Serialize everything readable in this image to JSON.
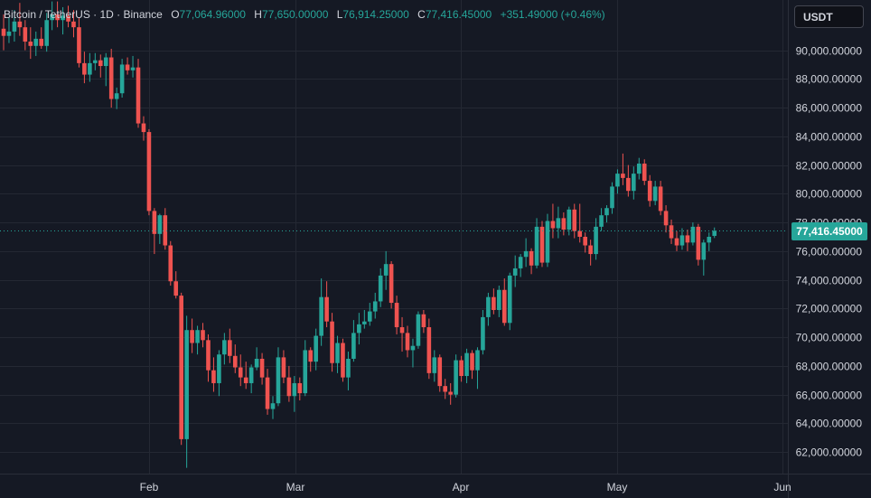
{
  "header": {
    "symbol": "Bitcoin / TetherUS · 1D · Binance",
    "open_label": "O",
    "open_value": "77,064.96000",
    "high_label": "H",
    "high_value": "77,650.00000",
    "low_label": "L",
    "low_value": "76,914.25000",
    "close_label": "C",
    "close_value": "77,416.45000",
    "change": "+351.49000 (+0.46%)"
  },
  "currency_button": "USDT",
  "last_price_label": "77,416.45000",
  "colors": {
    "background": "#151924",
    "grid": "#242833",
    "up": "#26a69a",
    "down": "#ef5350",
    "axis_text": "#d1d4dc"
  },
  "chart_data": {
    "type": "candlestick",
    "x_ticks": [
      "Feb",
      "Mar",
      "Apr",
      "May",
      "Jun"
    ],
    "y_ticks": [
      "62,000.00000",
      "64,000.00000",
      "66,000.00000",
      "68,000.00000",
      "70,000.00000",
      "72,000.00000",
      "74,000.00000",
      "76,000.00000",
      "78,000.00000",
      "80,000.00000",
      "82,000.00000",
      "84,000.00000",
      "86,000.00000",
      "88,000.00000",
      "90,000.00000"
    ],
    "y_range": [
      60500,
      93500
    ],
    "last_price": 77416.45,
    "candles": [
      [
        91500,
        92500,
        90000,
        91000
      ],
      [
        91000,
        92300,
        90500,
        91300
      ],
      [
        91300,
        92800,
        90600,
        92000
      ],
      [
        92000,
        93300,
        91000,
        91600
      ],
      [
        91600,
        92100,
        90000,
        90600
      ],
      [
        90600,
        91600,
        89400,
        90300
      ],
      [
        90300,
        91300,
        89600,
        90800
      ],
      [
        90800,
        91600,
        90100,
        90300
      ],
      [
        90300,
        92600,
        89900,
        92100
      ],
      [
        92100,
        93400,
        91400,
        92500
      ],
      [
        92500,
        93400,
        91600,
        92100
      ],
      [
        92100,
        93000,
        91100,
        92400
      ],
      [
        92400,
        93100,
        91600,
        92000
      ],
      [
        92000,
        92800,
        90900,
        91600
      ],
      [
        91600,
        92300,
        88800,
        89100
      ],
      [
        89100,
        89900,
        87700,
        88300
      ],
      [
        88300,
        89800,
        87800,
        89100
      ],
      [
        89100,
        89800,
        88600,
        89300
      ],
      [
        89300,
        89700,
        88100,
        88900
      ],
      [
        88900,
        89800,
        87500,
        89500
      ],
      [
        89500,
        90100,
        86000,
        86600
      ],
      [
        86600,
        87400,
        85900,
        87000
      ],
      [
        87000,
        89400,
        86700,
        89000
      ],
      [
        89000,
        89500,
        88300,
        88600
      ],
      [
        88600,
        89600,
        88100,
        88800
      ],
      [
        88800,
        89400,
        84600,
        84900
      ],
      [
        84900,
        85400,
        83700,
        84300
      ],
      [
        84300,
        84500,
        78500,
        78800
      ],
      [
        78800,
        79000,
        75800,
        77200
      ],
      [
        77200,
        78600,
        76500,
        78500
      ],
      [
        78500,
        79000,
        76100,
        76400
      ],
      [
        76400,
        76700,
        73600,
        73900
      ],
      [
        73900,
        74600,
        72700,
        72900
      ],
      [
        72900,
        73100,
        62500,
        62900
      ],
      [
        62900,
        71500,
        60900,
        70500
      ],
      [
        70500,
        71300,
        68900,
        69600
      ],
      [
        69600,
        70800,
        68800,
        70500
      ],
      [
        70500,
        71000,
        69300,
        69800
      ],
      [
        69800,
        70200,
        66900,
        67700
      ],
      [
        67700,
        68600,
        66200,
        66800
      ],
      [
        66800,
        69100,
        65900,
        68800
      ],
      [
        68800,
        70300,
        68100,
        69800
      ],
      [
        69800,
        70600,
        68200,
        68700
      ],
      [
        68700,
        69500,
        67500,
        67900
      ],
      [
        67900,
        68800,
        66600,
        67200
      ],
      [
        67200,
        68300,
        66400,
        66800
      ],
      [
        66800,
        68100,
        66100,
        67900
      ],
      [
        67900,
        69300,
        67700,
        68500
      ],
      [
        68500,
        68900,
        66700,
        67200
      ],
      [
        67200,
        67800,
        64600,
        65000
      ],
      [
        65000,
        65900,
        64300,
        65400
      ],
      [
        65400,
        69300,
        65200,
        68600
      ],
      [
        68600,
        69100,
        66800,
        67200
      ],
      [
        67200,
        68000,
        65500,
        65900
      ],
      [
        65900,
        67300,
        64800,
        66800
      ],
      [
        66800,
        67200,
        65600,
        66100
      ],
      [
        66100,
        69800,
        65900,
        69100
      ],
      [
        69100,
        69300,
        67600,
        68300
      ],
      [
        68300,
        70600,
        67700,
        70100
      ],
      [
        70100,
        74100,
        69400,
        72800
      ],
      [
        72800,
        73900,
        70700,
        71100
      ],
      [
        71100,
        71700,
        67600,
        68200
      ],
      [
        68200,
        70100,
        67500,
        69600
      ],
      [
        69600,
        69900,
        66900,
        67200
      ],
      [
        67200,
        69000,
        66300,
        68500
      ],
      [
        68500,
        71200,
        68300,
        70300
      ],
      [
        70300,
        71700,
        69500,
        70900
      ],
      [
        70900,
        71900,
        70600,
        71100
      ],
      [
        71100,
        72400,
        70800,
        71800
      ],
      [
        71800,
        73100,
        71300,
        72500
      ],
      [
        72500,
        74800,
        72100,
        74300
      ],
      [
        74300,
        76000,
        73300,
        75100
      ],
      [
        75100,
        75300,
        72000,
        72400
      ],
      [
        72400,
        72900,
        70200,
        70700
      ],
      [
        70700,
        71400,
        69000,
        70300
      ],
      [
        70300,
        70800,
        68600,
        69100
      ],
      [
        69100,
        69900,
        67900,
        69400
      ],
      [
        69400,
        71800,
        69200,
        71600
      ],
      [
        71600,
        71900,
        70300,
        70700
      ],
      [
        70700,
        71300,
        67100,
        67500
      ],
      [
        67500,
        69100,
        66900,
        68600
      ],
      [
        68600,
        68800,
        66200,
        66600
      ],
      [
        66600,
        67100,
        65700,
        66200
      ],
      [
        66200,
        66800,
        65300,
        66000
      ],
      [
        66000,
        68800,
        65800,
        68400
      ],
      [
        68400,
        68700,
        66900,
        67300
      ],
      [
        67300,
        69200,
        66800,
        68900
      ],
      [
        68900,
        69100,
        67100,
        67700
      ],
      [
        67700,
        69300,
        66400,
        69100
      ],
      [
        69100,
        71900,
        68800,
        71400
      ],
      [
        71400,
        73100,
        70800,
        72800
      ],
      [
        72800,
        73400,
        71600,
        71900
      ],
      [
        71900,
        73600,
        71400,
        73300
      ],
      [
        73300,
        74100,
        70800,
        71000
      ],
      [
        71000,
        74500,
        70500,
        74300
      ],
      [
        74300,
        75700,
        73500,
        74800
      ],
      [
        74800,
        75800,
        74200,
        75600
      ],
      [
        75600,
        76900,
        74900,
        76000
      ],
      [
        76000,
        76200,
        74400,
        75000
      ],
      [
        75000,
        78300,
        74800,
        77700
      ],
      [
        77700,
        78100,
        74900,
        75200
      ],
      [
        75200,
        78600,
        74900,
        78100
      ],
      [
        78100,
        79300,
        76900,
        77600
      ],
      [
        77600,
        79100,
        76900,
        78300
      ],
      [
        78300,
        78700,
        77100,
        77500
      ],
      [
        77500,
        79100,
        77100,
        78900
      ],
      [
        78900,
        79300,
        76900,
        77400
      ],
      [
        77400,
        79300,
        76600,
        77000
      ],
      [
        77000,
        77300,
        75900,
        76400
      ],
      [
        76400,
        76800,
        75000,
        75800
      ],
      [
        75800,
        78300,
        75400,
        77700
      ],
      [
        77700,
        79000,
        77400,
        78500
      ],
      [
        78500,
        79200,
        78000,
        79000
      ],
      [
        79000,
        80800,
        78600,
        80500
      ],
      [
        80500,
        81700,
        80000,
        81400
      ],
      [
        81400,
        82800,
        80600,
        81100
      ],
      [
        81100,
        82000,
        79800,
        80200
      ],
      [
        80200,
        81900,
        79600,
        81400
      ],
      [
        81400,
        82500,
        81000,
        82100
      ],
      [
        82100,
        82400,
        80600,
        80900
      ],
      [
        80900,
        81300,
        79100,
        79500
      ],
      [
        79500,
        80900,
        79200,
        80500
      ],
      [
        80500,
        80900,
        78500,
        78800
      ],
      [
        78800,
        79200,
        77300,
        77800
      ],
      [
        77800,
        78200,
        76500,
        76900
      ],
      [
        76900,
        77400,
        76000,
        76400
      ],
      [
        76400,
        77600,
        76100,
        77100
      ],
      [
        77100,
        77500,
        76000,
        76600
      ],
      [
        76600,
        78000,
        76400,
        77700
      ],
      [
        77700,
        77900,
        75000,
        75400
      ],
      [
        75400,
        76800,
        74300,
        76600
      ],
      [
        76600,
        77300,
        76000,
        77000
      ],
      [
        77065,
        77650,
        76914,
        77416
      ]
    ]
  }
}
